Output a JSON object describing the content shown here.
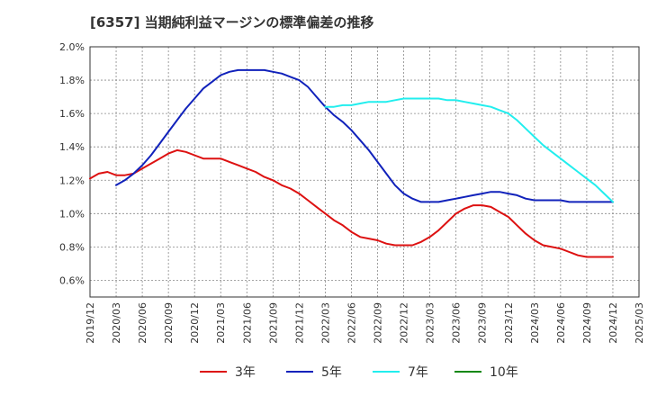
{
  "chart_data": {
    "type": "line",
    "title": "[6357]  当期純利益マージンの標準偏差の推移",
    "xlabel": "",
    "ylabel": "",
    "y_tick_labels": [
      "0.6%",
      "0.8%",
      "1.0%",
      "1.2%",
      "1.4%",
      "1.6%",
      "1.8%",
      "2.0%"
    ],
    "y_ticks": [
      0.6,
      0.8,
      1.0,
      1.2,
      1.4,
      1.6,
      1.8,
      2.0
    ],
    "ylim": [
      0.5,
      2.0
    ],
    "x_tick_labels": [
      "2019/12",
      "2020/03",
      "2020/06",
      "2020/09",
      "2020/12",
      "2021/03",
      "2021/06",
      "2021/09",
      "2021/12",
      "2022/03",
      "2022/06",
      "2022/09",
      "2022/12",
      "2023/03",
      "2023/06",
      "2023/09",
      "2023/12",
      "2024/03",
      "2024/06",
      "2024/09",
      "2024/12",
      "2025/03"
    ],
    "xlim": [
      "2019/12",
      "2025/03"
    ],
    "grid": true,
    "legend_position": "bottom",
    "series": [
      {
        "name": "3年",
        "color": "#dd1111",
        "x": [
          "2019/12",
          "2020/01",
          "2020/02",
          "2020/03",
          "2020/04",
          "2020/05",
          "2020/06",
          "2020/07",
          "2020/08",
          "2020/09",
          "2020/10",
          "2020/11",
          "2020/12",
          "2021/01",
          "2021/02",
          "2021/03",
          "2021/04",
          "2021/05",
          "2021/06",
          "2021/07",
          "2021/08",
          "2021/09",
          "2021/10",
          "2021/11",
          "2021/12",
          "2022/01",
          "2022/02",
          "2022/03",
          "2022/04",
          "2022/05",
          "2022/06",
          "2022/07",
          "2022/08",
          "2022/09",
          "2022/10",
          "2022/11",
          "2022/12",
          "2023/01",
          "2023/02",
          "2023/03",
          "2023/04",
          "2023/05",
          "2023/06",
          "2023/07",
          "2023/08",
          "2023/09",
          "2023/10",
          "2023/11",
          "2023/12",
          "2024/01",
          "2024/02",
          "2024/03",
          "2024/04",
          "2024/05",
          "2024/06",
          "2024/07",
          "2024/08",
          "2024/09",
          "2024/10",
          "2024/11",
          "2024/12"
        ],
        "values": [
          1.21,
          1.24,
          1.25,
          1.23,
          1.23,
          1.24,
          1.27,
          1.3,
          1.33,
          1.36,
          1.38,
          1.37,
          1.35,
          1.33,
          1.33,
          1.33,
          1.31,
          1.29,
          1.27,
          1.25,
          1.22,
          1.2,
          1.17,
          1.15,
          1.12,
          1.08,
          1.04,
          1.0,
          0.96,
          0.93,
          0.89,
          0.86,
          0.85,
          0.84,
          0.82,
          0.81,
          0.81,
          0.81,
          0.83,
          0.86,
          0.9,
          0.95,
          1.0,
          1.03,
          1.05,
          1.05,
          1.04,
          1.01,
          0.98,
          0.93,
          0.88,
          0.84,
          0.81,
          0.8,
          0.79,
          0.77,
          0.75,
          0.74,
          0.74,
          0.74,
          0.74
        ]
      },
      {
        "name": "5年",
        "color": "#1122bb",
        "x": [
          "2020/03",
          "2020/04",
          "2020/05",
          "2020/06",
          "2020/07",
          "2020/08",
          "2020/09",
          "2020/10",
          "2020/11",
          "2020/12",
          "2021/01",
          "2021/02",
          "2021/03",
          "2021/04",
          "2021/05",
          "2021/06",
          "2021/07",
          "2021/08",
          "2021/09",
          "2021/10",
          "2021/11",
          "2021/12",
          "2022/01",
          "2022/02",
          "2022/03",
          "2022/04",
          "2022/05",
          "2022/06",
          "2022/07",
          "2022/08",
          "2022/09",
          "2022/10",
          "2022/11",
          "2022/12",
          "2023/01",
          "2023/02",
          "2023/03",
          "2023/04",
          "2023/05",
          "2023/06",
          "2023/07",
          "2023/08",
          "2023/09",
          "2023/10",
          "2023/11",
          "2023/12",
          "2024/01",
          "2024/02",
          "2024/03",
          "2024/04",
          "2024/05",
          "2024/06",
          "2024/07",
          "2024/08",
          "2024/09",
          "2024/10",
          "2024/11",
          "2024/12"
        ],
        "values": [
          1.17,
          1.2,
          1.24,
          1.29,
          1.35,
          1.42,
          1.49,
          1.56,
          1.63,
          1.69,
          1.75,
          1.79,
          1.83,
          1.85,
          1.86,
          1.86,
          1.86,
          1.86,
          1.85,
          1.84,
          1.82,
          1.8,
          1.76,
          1.7,
          1.64,
          1.59,
          1.55,
          1.5,
          1.44,
          1.38,
          1.31,
          1.24,
          1.17,
          1.12,
          1.09,
          1.07,
          1.07,
          1.07,
          1.08,
          1.09,
          1.1,
          1.11,
          1.12,
          1.13,
          1.13,
          1.12,
          1.11,
          1.09,
          1.08,
          1.08,
          1.08,
          1.08,
          1.07,
          1.07,
          1.07,
          1.07,
          1.07,
          1.07
        ]
      },
      {
        "name": "7年",
        "color": "#22eeee",
        "x": [
          "2022/03",
          "2022/04",
          "2022/05",
          "2022/06",
          "2022/07",
          "2022/08",
          "2022/09",
          "2022/10",
          "2022/11",
          "2022/12",
          "2023/01",
          "2023/02",
          "2023/03",
          "2023/04",
          "2023/05",
          "2023/06",
          "2023/07",
          "2023/08",
          "2023/09",
          "2023/10",
          "2023/11",
          "2023/12",
          "2024/01",
          "2024/02",
          "2024/03",
          "2024/04",
          "2024/05",
          "2024/06",
          "2024/07",
          "2024/08",
          "2024/09",
          "2024/10",
          "2024/11",
          "2024/12"
        ],
        "values": [
          1.64,
          1.64,
          1.65,
          1.65,
          1.66,
          1.67,
          1.67,
          1.67,
          1.68,
          1.69,
          1.69,
          1.69,
          1.69,
          1.69,
          1.68,
          1.68,
          1.67,
          1.66,
          1.65,
          1.64,
          1.62,
          1.6,
          1.56,
          1.51,
          1.46,
          1.41,
          1.37,
          1.33,
          1.29,
          1.25,
          1.21,
          1.17,
          1.12,
          1.07
        ]
      },
      {
        "name": "10年",
        "color": "#118811",
        "x": [],
        "values": []
      }
    ]
  }
}
